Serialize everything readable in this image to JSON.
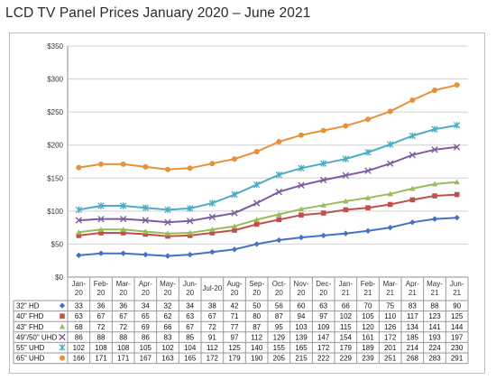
{
  "title": "LCD TV Panel Prices January 2020 – June 2021",
  "chart_data": {
    "type": "line",
    "title": "LCD TV Panel Prices January 2020 – June 2021",
    "xlabel": "",
    "ylabel": "",
    "ylim": [
      0,
      350
    ],
    "yticks": [
      "$0",
      "$50",
      "$100",
      "$150",
      "$200",
      "$250",
      "$300",
      "$350"
    ],
    "ytick_values": [
      0,
      50,
      100,
      150,
      200,
      250,
      300,
      350
    ],
    "grid": true,
    "legend": "data-table-below",
    "categories": [
      [
        "Jan-",
        "20"
      ],
      [
        "Feb-",
        "20"
      ],
      [
        "Mar-",
        "20"
      ],
      [
        "Apr-",
        "20"
      ],
      [
        "May-",
        "20"
      ],
      [
        "Jun-",
        "20"
      ],
      [
        "Jul-20"
      ],
      [
        "Aug-",
        "20"
      ],
      [
        "Sep-",
        "20"
      ],
      [
        "Oct-",
        "20"
      ],
      [
        "Nov-",
        "20"
      ],
      [
        "Dec-",
        "20"
      ],
      [
        "Jan-",
        "21"
      ],
      [
        "Feb-",
        "21"
      ],
      [
        "Mar-",
        "21"
      ],
      [
        "Apr-",
        "21"
      ],
      [
        "May-",
        "21"
      ],
      [
        "Jun-",
        "21"
      ]
    ],
    "series": [
      {
        "name": "32\" HD",
        "color": "#4472C4",
        "marker": "diamond",
        "values": [
          33,
          36,
          36,
          34,
          32,
          34,
          38,
          42,
          50,
          56,
          60,
          63,
          66,
          70,
          75,
          83,
          88,
          90
        ]
      },
      {
        "name": "40\" FHD",
        "color": "#C0504D",
        "marker": "square",
        "values": [
          63,
          67,
          67,
          65,
          62,
          63,
          67,
          71,
          80,
          87,
          94,
          97,
          102,
          105,
          110,
          117,
          123,
          125
        ]
      },
      {
        "name": "43\" FHD",
        "color": "#9BBB59",
        "marker": "triangle",
        "values": [
          68,
          72,
          72,
          69,
          66,
          67,
          72,
          77,
          87,
          95,
          103,
          109,
          115,
          120,
          126,
          134,
          141,
          144
        ]
      },
      {
        "name": "49\"/50\" UHD",
        "color": "#7E5C9E",
        "marker": "x",
        "values": [
          86,
          88,
          88,
          86,
          83,
          85,
          91,
          97,
          112,
          129,
          139,
          147,
          154,
          161,
          172,
          185,
          193,
          197
        ]
      },
      {
        "name": "55\" UHD",
        "color": "#4BACC6",
        "marker": "star",
        "values": [
          102,
          108,
          108,
          105,
          102,
          104,
          112,
          125,
          140,
          155,
          165,
          172,
          179,
          189,
          201,
          214,
          224,
          230
        ]
      },
      {
        "name": "65\" UHD",
        "color": "#E8903A",
        "marker": "circle",
        "values": [
          166,
          171,
          171,
          167,
          163,
          165,
          172,
          179,
          190,
          205,
          215,
          222,
          229,
          239,
          251,
          268,
          283,
          291
        ]
      }
    ]
  }
}
